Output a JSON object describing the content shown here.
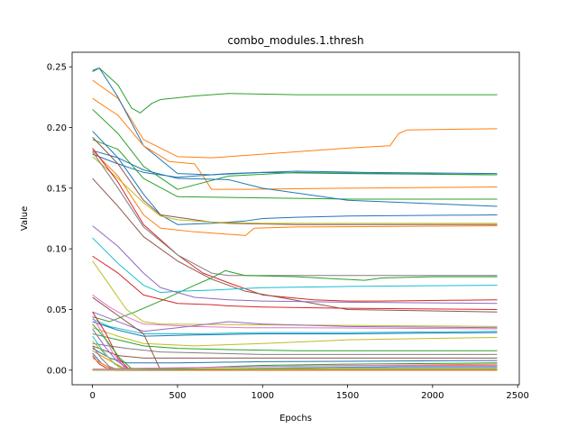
{
  "chart_data": {
    "type": "line",
    "title": "combo_modules.1.thresh",
    "xlabel": "Epochs",
    "ylabel": "Value",
    "xlim": [
      -120,
      2510
    ],
    "ylim": [
      -0.012,
      0.262
    ],
    "xticks": [
      0,
      500,
      1000,
      1500,
      2000,
      2500
    ],
    "xtick_labels": [
      "0",
      "500",
      "1000",
      "1500",
      "2000",
      "2500"
    ],
    "yticks": [
      0.0,
      0.05,
      0.1,
      0.15,
      0.2,
      0.25
    ],
    "ytick_labels": [
      "0.00",
      "0.05",
      "0.10",
      "0.15",
      "0.20",
      "0.25"
    ],
    "grid": false,
    "legend": "none",
    "palette": [
      "#1f77b4",
      "#ff7f0e",
      "#2ca02c",
      "#d62728",
      "#9467bd",
      "#8c564b",
      "#e377c2",
      "#7f7f7f",
      "#bcbd22",
      "#17becf"
    ],
    "series": [
      {
        "color": "#2ca02c",
        "x": [
          0,
          40,
          150,
          230,
          280,
          350,
          400,
          600,
          800,
          1200,
          2380
        ],
        "y": [
          0.246,
          0.249,
          0.235,
          0.216,
          0.212,
          0.22,
          0.223,
          0.226,
          0.228,
          0.227,
          0.227
        ]
      },
      {
        "color": "#ff7f0e",
        "x": [
          0,
          150,
          300,
          500,
          700,
          1000,
          1500,
          1750,
          1800,
          1850,
          2380
        ],
        "y": [
          0.239,
          0.224,
          0.19,
          0.176,
          0.175,
          0.178,
          0.183,
          0.185,
          0.195,
          0.198,
          0.199
        ]
      },
      {
        "color": "#1f77b4",
        "x": [
          0,
          40,
          150,
          300,
          500,
          700,
          1000,
          1500,
          2380
        ],
        "y": [
          0.247,
          0.249,
          0.225,
          0.185,
          0.162,
          0.161,
          0.163,
          0.162,
          0.161
        ]
      },
      {
        "color": "#1f77b4",
        "x": [
          0,
          150,
          300,
          500,
          800,
          1200,
          1600,
          2380
        ],
        "y": [
          0.178,
          0.17,
          0.163,
          0.159,
          0.162,
          0.164,
          0.163,
          0.162
        ]
      },
      {
        "color": "#ff7f0e",
        "x": [
          0,
          150,
          300,
          450,
          600,
          650,
          700,
          900,
          1500,
          2380
        ],
        "y": [
          0.224,
          0.21,
          0.185,
          0.172,
          0.17,
          0.16,
          0.149,
          0.149,
          0.15,
          0.151
        ]
      },
      {
        "color": "#2ca02c",
        "x": [
          0,
          150,
          300,
          500,
          800,
          1200,
          1800,
          2380
        ],
        "y": [
          0.215,
          0.195,
          0.168,
          0.149,
          0.16,
          0.163,
          0.162,
          0.161
        ]
      },
      {
        "color": "#2ca02c",
        "x": [
          0,
          150,
          300,
          500,
          1000,
          1500,
          2380
        ],
        "y": [
          0.19,
          0.182,
          0.158,
          0.143,
          0.142,
          0.141,
          0.141
        ]
      },
      {
        "color": "#1f77b4",
        "x": [
          0,
          150,
          300,
          500,
          800,
          1000,
          1500,
          2380
        ],
        "y": [
          0.181,
          0.175,
          0.165,
          0.158,
          0.157,
          0.15,
          0.14,
          0.135
        ]
      },
      {
        "color": "#1f77b4",
        "x": [
          0,
          150,
          300,
          400,
          500,
          700,
          900,
          1000,
          1200,
          1500,
          2380
        ],
        "y": [
          0.197,
          0.175,
          0.145,
          0.128,
          0.12,
          0.121,
          0.123,
          0.125,
          0.126,
          0.127,
          0.128
        ]
      },
      {
        "color": "#8c564b",
        "x": [
          0,
          150,
          300,
          400,
          500,
          600,
          700,
          800,
          1200,
          2380
        ],
        "y": [
          0.192,
          0.17,
          0.14,
          0.128,
          0.126,
          0.124,
          0.122,
          0.121,
          0.12,
          0.12
        ]
      },
      {
        "color": "#bcbd22",
        "x": [
          0,
          150,
          300,
          400,
          500,
          700,
          1000,
          1300,
          2380
        ],
        "y": [
          0.176,
          0.158,
          0.138,
          0.127,
          0.124,
          0.122,
          0.121,
          0.121,
          0.121
        ]
      },
      {
        "color": "#ff7f0e",
        "x": [
          0,
          150,
          300,
          400,
          600,
          900,
          950,
          1200,
          2380
        ],
        "y": [
          0.181,
          0.16,
          0.128,
          0.117,
          0.114,
          0.111,
          0.117,
          0.118,
          0.119
        ]
      },
      {
        "color": "#d62728",
        "x": [
          0,
          150,
          300,
          500,
          650,
          800,
          1000,
          1300,
          1500,
          1700,
          2380
        ],
        "y": [
          0.183,
          0.155,
          0.12,
          0.095,
          0.08,
          0.072,
          0.062,
          0.058,
          0.057,
          0.057,
          0.058
        ]
      },
      {
        "color": "#8c564b",
        "x": [
          0,
          150,
          300,
          500,
          700,
          900,
          1100,
          1300,
          1500,
          2380
        ],
        "y": [
          0.158,
          0.135,
          0.11,
          0.09,
          0.075,
          0.065,
          0.06,
          0.055,
          0.05,
          0.048
        ]
      },
      {
        "color": "#7f7f7f",
        "x": [
          0,
          150,
          300,
          500,
          700,
          800,
          1000,
          2380
        ],
        "y": [
          0.18,
          0.15,
          0.118,
          0.095,
          0.08,
          0.078,
          0.078,
          0.078
        ]
      },
      {
        "color": "#2ca02c",
        "x": [
          0,
          100,
          250,
          400,
          600,
          700,
          780,
          900,
          1200,
          1600,
          1700,
          2000,
          2380
        ],
        "y": [
          0.044,
          0.04,
          0.048,
          0.057,
          0.07,
          0.076,
          0.082,
          0.078,
          0.077,
          0.074,
          0.076,
          0.077,
          0.077
        ]
      },
      {
        "color": "#17becf",
        "x": [
          0,
          150,
          300,
          400,
          500,
          700,
          1000,
          1500,
          2380
        ],
        "y": [
          0.109,
          0.088,
          0.07,
          0.064,
          0.065,
          0.066,
          0.068,
          0.069,
          0.07
        ]
      },
      {
        "color": "#9467bd",
        "x": [
          0,
          150,
          300,
          400,
          600,
          800,
          1000,
          1500,
          2380
        ],
        "y": [
          0.119,
          0.102,
          0.08,
          0.068,
          0.06,
          0.058,
          0.057,
          0.056,
          0.055
        ]
      },
      {
        "color": "#d62728",
        "x": [
          0,
          150,
          300,
          500,
          700,
          800,
          1000,
          1500,
          2380
        ],
        "y": [
          0.094,
          0.08,
          0.062,
          0.055,
          0.054,
          0.053,
          0.052,
          0.051,
          0.05
        ]
      },
      {
        "color": "#bcbd22",
        "x": [
          0,
          100,
          200,
          300,
          400,
          2380
        ],
        "y": [
          0.09,
          0.07,
          0.05,
          0.04,
          0.038,
          0.036
        ]
      },
      {
        "color": "#e377c2",
        "x": [
          0,
          100,
          200,
          300,
          600,
          900,
          1200,
          2380
        ],
        "y": [
          0.062,
          0.052,
          0.044,
          0.038,
          0.036,
          0.035,
          0.035,
          0.034
        ]
      },
      {
        "color": "#9467bd",
        "x": [
          0,
          150,
          300,
          500,
          800,
          1000,
          1500,
          2380
        ],
        "y": [
          0.048,
          0.04,
          0.032,
          0.035,
          0.04,
          0.038,
          0.036,
          0.035
        ]
      },
      {
        "color": "#17becf",
        "x": [
          0,
          100,
          300,
          600,
          1000,
          1500,
          2380
        ],
        "y": [
          0.042,
          0.036,
          0.03,
          0.03,
          0.031,
          0.031,
          0.032
        ]
      },
      {
        "color": "#1f77b4",
        "x": [
          0,
          150,
          300,
          600,
          1000,
          1500,
          2380
        ],
        "y": [
          0.04,
          0.033,
          0.028,
          0.029,
          0.03,
          0.03,
          0.031
        ]
      },
      {
        "color": "#bcbd22",
        "x": [
          0,
          150,
          300,
          600,
          1000,
          1500,
          2380
        ],
        "y": [
          0.035,
          0.028,
          0.022,
          0.02,
          0.022,
          0.025,
          0.027
        ]
      },
      {
        "color": "#2ca02c",
        "x": [
          0,
          150,
          300,
          500,
          800,
          1200,
          2380
        ],
        "y": [
          0.03,
          0.025,
          0.02,
          0.018,
          0.017,
          0.016,
          0.016
        ]
      },
      {
        "color": "#7f7f7f",
        "x": [
          0,
          200,
          400,
          700,
          1000,
          1500,
          2380
        ],
        "y": [
          0.022,
          0.018,
          0.015,
          0.014,
          0.013,
          0.013,
          0.013
        ]
      },
      {
        "color": "#8c564b",
        "x": [
          0,
          150,
          300,
          700,
          1200,
          2380
        ],
        "y": [
          0.02,
          0.012,
          0.01,
          0.01,
          0.01,
          0.01
        ]
      },
      {
        "color": "#1f77b4",
        "x": [
          0,
          100,
          200,
          500,
          1000,
          2380
        ],
        "y": [
          0.018,
          0.01,
          0.006,
          0.006,
          0.007,
          0.008
        ]
      },
      {
        "color": "#ff7f0e",
        "x": [
          0,
          100,
          180,
          300,
          1000,
          2380
        ],
        "y": [
          0.016,
          0.008,
          0.002,
          0.001,
          0.003,
          0.005
        ]
      },
      {
        "color": "#d62728",
        "x": [
          0,
          80,
          150,
          220,
          2380
        ],
        "y": [
          0.048,
          0.03,
          0.01,
          0.0,
          0.0
        ]
      },
      {
        "color": "#8c564b",
        "x": [
          0,
          150,
          300,
          400,
          2380
        ],
        "y": [
          0.06,
          0.045,
          0.03,
          0.0,
          0.0
        ]
      },
      {
        "color": "#e377c2",
        "x": [
          0,
          60,
          120,
          200,
          2380
        ],
        "y": [
          0.044,
          0.03,
          0.014,
          0.0,
          0.0
        ]
      },
      {
        "color": "#2ca02c",
        "x": [
          0,
          80,
          160,
          240,
          2380
        ],
        "y": [
          0.038,
          0.025,
          0.01,
          0.0,
          0.0
        ]
      },
      {
        "color": "#9467bd",
        "x": [
          0,
          70,
          140,
          220,
          2380
        ],
        "y": [
          0.034,
          0.02,
          0.008,
          0.0,
          0.0
        ]
      },
      {
        "color": "#17becf",
        "x": [
          0,
          60,
          130,
          200,
          2380
        ],
        "y": [
          0.028,
          0.016,
          0.005,
          0.0,
          0.0
        ]
      },
      {
        "color": "#bcbd22",
        "x": [
          0,
          80,
          150,
          210,
          2380
        ],
        "y": [
          0.024,
          0.012,
          0.003,
          0.0,
          0.0
        ]
      },
      {
        "color": "#7f7f7f",
        "x": [
          0,
          50,
          100,
          160,
          2380
        ],
        "y": [
          0.02,
          0.01,
          0.003,
          0.0,
          0.0
        ]
      },
      {
        "color": "#1f77b4",
        "x": [
          0,
          50,
          110,
          170,
          2380
        ],
        "y": [
          0.014,
          0.006,
          0.001,
          0.0,
          0.0
        ]
      },
      {
        "color": "#d62728",
        "x": [
          0,
          40,
          90,
          140,
          2380
        ],
        "y": [
          0.012,
          0.005,
          0.001,
          0.0,
          0.0
        ]
      },
      {
        "color": "#ff7f0e",
        "x": [
          0,
          60,
          120,
          180,
          2380
        ],
        "y": [
          0.01,
          0.005,
          0.001,
          0.0,
          0.0
        ]
      },
      {
        "color": "#2ca02c",
        "x": [
          0,
          300,
          600,
          1000,
          1500,
          2380
        ],
        "y": [
          0.0,
          0.001,
          0.002,
          0.004,
          0.005,
          0.006
        ]
      },
      {
        "color": "#9467bd",
        "x": [
          0,
          400,
          800,
          1200,
          1800,
          2380
        ],
        "y": [
          0.0,
          0.001,
          0.001,
          0.002,
          0.003,
          0.003
        ]
      },
      {
        "color": "#8c564b",
        "x": [
          0,
          400,
          900,
          1400,
          2380
        ],
        "y": [
          0.0,
          0.0,
          0.001,
          0.002,
          0.002
        ]
      },
      {
        "color": "#e377c2",
        "x": [
          0,
          500,
          1000,
          1500,
          2380
        ],
        "y": [
          0.001,
          0.002,
          0.003,
          0.004,
          0.004
        ]
      },
      {
        "color": "#7f7f7f",
        "x": [
          0,
          500,
          1000,
          2380
        ],
        "y": [
          0.0,
          0.001,
          0.001,
          0.001
        ]
      },
      {
        "color": "#17becf",
        "x": [
          0,
          600,
          1200,
          2380
        ],
        "y": [
          0.0,
          0.001,
          0.002,
          0.002
        ]
      },
      {
        "color": "#bcbd22",
        "x": [
          0,
          800,
          1600,
          2380
        ],
        "y": [
          0.0,
          0.001,
          0.001,
          0.001
        ]
      }
    ]
  }
}
